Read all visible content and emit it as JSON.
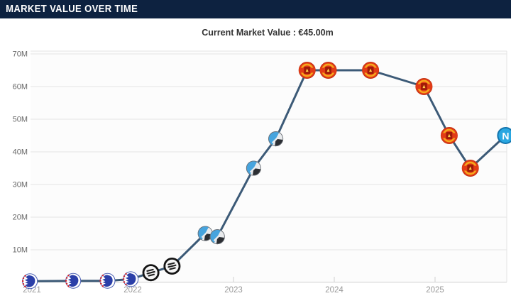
{
  "header": {
    "title": "MARKET VALUE OVER TIME"
  },
  "theme": {
    "header_bg": "#0d2240",
    "header_text": "#ffffff",
    "title_text": "#333333",
    "plot_bg": "#fcfcfc",
    "grid_color": "#e4e4e4",
    "plot_border_color": "#e4e4e4",
    "axis_line_color": "#d0d0d0",
    "tick_color": "#cfcfcf",
    "y_label_color": "#666666",
    "x_label_color": "#999999",
    "line_color": "#3c5a77"
  },
  "chart_data": {
    "type": "line",
    "title": "Current Market Value : €45.00m",
    "current_value": "€45.00m",
    "unit": "€ million",
    "grid": "horizontal",
    "legend": "none",
    "x_axis": {
      "ticks": [
        2021,
        2022,
        2023,
        2024,
        2025
      ],
      "tick_labels": [
        "2021",
        "2022",
        "2023",
        "2024",
        "2025"
      ],
      "range": [
        2020.95,
        2025.72
      ]
    },
    "y_axis": {
      "tick_values": [
        10,
        20,
        30,
        40,
        50,
        60,
        70
      ],
      "tick_labels": [
        "10M",
        "20M",
        "30M",
        "40M",
        "50M",
        "60M",
        "70M"
      ],
      "range": [
        0,
        70.8
      ]
    },
    "series": [
      {
        "name": "Market value",
        "points": [
          {
            "year": 2020.98,
            "value_m": 0.4,
            "badge": "fc-copenhagen-badge"
          },
          {
            "year": 2021.41,
            "value_m": 0.5,
            "badge": "fc-copenhagen-badge"
          },
          {
            "year": 2021.75,
            "value_m": 0.5,
            "badge": "fc-copenhagen-badge"
          },
          {
            "year": 2021.98,
            "value_m": 1.0,
            "badge": "fc-copenhagen-badge"
          },
          {
            "year": 2022.18,
            "value_m": 3.0,
            "badge": "sturm-graz-badge"
          },
          {
            "year": 2022.39,
            "value_m": 5.0,
            "badge": "sturm-graz-badge"
          },
          {
            "year": 2022.72,
            "value_m": 15.0,
            "badge": "atalanta-badge"
          },
          {
            "year": 2022.84,
            "value_m": 14.0,
            "badge": "atalanta-badge"
          },
          {
            "year": 2023.2,
            "value_m": 35.0,
            "badge": "atalanta-badge"
          },
          {
            "year": 2023.42,
            "value_m": 44.0,
            "badge": "atalanta-badge"
          },
          {
            "year": 2023.73,
            "value_m": 65.0,
            "badge": "man-united-badge"
          },
          {
            "year": 2023.94,
            "value_m": 65.0,
            "badge": "man-united-badge"
          },
          {
            "year": 2024.36,
            "value_m": 65.0,
            "badge": "man-united-badge"
          },
          {
            "year": 2024.89,
            "value_m": 60.0,
            "badge": "man-united-badge"
          },
          {
            "year": 2025.14,
            "value_m": 45.0,
            "badge": "man-united-badge"
          },
          {
            "year": 2025.35,
            "value_m": 35.0,
            "badge": "man-united-badge"
          },
          {
            "year": 2025.7,
            "value_m": 45.0,
            "badge": "napoli-badge"
          }
        ]
      }
    ]
  },
  "badges": {
    "fc-copenhagen-badge": {
      "shape": "copenhagen",
      "r": 10.5,
      "colors": {
        "bg": "#ffffff",
        "ring": "#4a5fb4",
        "bird": "#2b3fa8",
        "accent": "#d2232a"
      }
    },
    "sturm-graz-badge": {
      "shape": "sturm",
      "r": 12,
      "colors": {
        "bg": "#f5f5f5",
        "ring": "#141414",
        "mark": "#1e1e1e"
      }
    },
    "atalanta-badge": {
      "shape": "atalanta",
      "r": 10.5,
      "colors": {
        "bg": "#e9ebed",
        "ring": "#6b7077",
        "blue": "#46a4de",
        "dark": "#2b2e33"
      }
    },
    "man-united-badge": {
      "shape": "manutd",
      "r": 11.5,
      "colors": {
        "bg": "#e23b16",
        "ring": "#f6a81c",
        "center": "#a01a08",
        "accent": "#ffd24a",
        "edge": "#c23212"
      }
    },
    "napoli-badge": {
      "shape": "napoli",
      "r": 12,
      "letter": "N",
      "colors": {
        "bg": "#2aa7e1",
        "ring": "#1374ad",
        "letter": "#ffffff"
      }
    }
  }
}
